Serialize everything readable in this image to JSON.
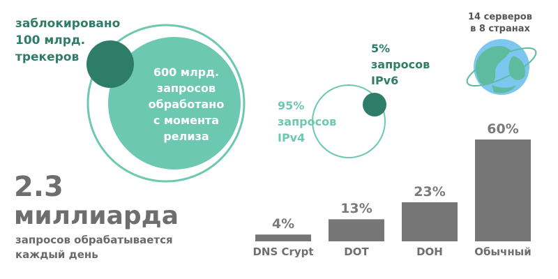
{
  "blocked_text": "заблокировано\n100 млрд.\nтрекеров",
  "processed_text": "600 млрд.\nзапросов\nобработано\nс момента\nрелиза",
  "ipv4_text": "95%\nзапросов\nIPv4",
  "ipv6_text": "5%\nзапросов\nIPv6",
  "servers_text": "14 серверов\nв 8 странах",
  "big_number": "2.3",
  "big_unit": "миллиарда",
  "big_caption": "запросов обрабатывается\nкаждый день",
  "chart_data": {
    "type": "bar",
    "categories": [
      "DNS Crypt",
      "DOT",
      "DOH",
      "Обычный"
    ],
    "values": [
      4,
      13,
      23,
      60
    ],
    "labels": [
      "4%",
      "13%",
      "23%",
      "60%"
    ],
    "ylim": [
      0,
      60
    ],
    "bar_color": "#767676"
  },
  "colors": {
    "dark_green": "#2e7d68",
    "teal": "#6cc8b0",
    "gray": "#767676"
  },
  "icons": {
    "globe": "globe-icon"
  }
}
